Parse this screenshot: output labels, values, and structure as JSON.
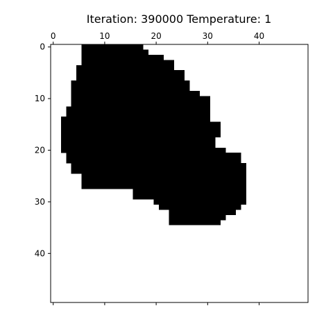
{
  "chart_data": {
    "type": "heatmap",
    "title": "Iteration: 390000 Temperature: 1",
    "grid_size": [
      50,
      50
    ],
    "xlim": [
      -0.5,
      49.5
    ],
    "ylim": [
      49.5,
      -0.5
    ],
    "x_ticks": [
      0,
      10,
      20,
      30,
      40
    ],
    "y_ticks": [
      0,
      10,
      20,
      30,
      40
    ],
    "x_axis_position": "top-and-bottom",
    "colormap": {
      "filled": "#000000",
      "empty": "#ffffff"
    },
    "filled_rows": [
      {
        "row": 0,
        "start": 6,
        "end": 17
      },
      {
        "row": 1,
        "start": 6,
        "end": 18
      },
      {
        "row": 2,
        "start": 6,
        "end": 21
      },
      {
        "row": 3,
        "start": 6,
        "end": 23
      },
      {
        "row": 4,
        "start": 5,
        "end": 23
      },
      {
        "row": 5,
        "start": 5,
        "end": 25
      },
      {
        "row": 6,
        "start": 5,
        "end": 25
      },
      {
        "row": 7,
        "start": 4,
        "end": 26
      },
      {
        "row": 8,
        "start": 4,
        "end": 26
      },
      {
        "row": 9,
        "start": 4,
        "end": 28
      },
      {
        "row": 10,
        "start": 4,
        "end": 30
      },
      {
        "row": 11,
        "start": 4,
        "end": 30
      },
      {
        "row": 12,
        "start": 3,
        "end": 30
      },
      {
        "row": 13,
        "start": 3,
        "end": 30
      },
      {
        "row": 14,
        "start": 2,
        "end": 30
      },
      {
        "row": 15,
        "start": 2,
        "end": 32
      },
      {
        "row": 16,
        "start": 2,
        "end": 32
      },
      {
        "row": 17,
        "start": 2,
        "end": 32
      },
      {
        "row": 18,
        "start": 2,
        "end": 31
      },
      {
        "row": 19,
        "start": 2,
        "end": 31
      },
      {
        "row": 20,
        "start": 2,
        "end": 33
      },
      {
        "row": 21,
        "start": 3,
        "end": 36
      },
      {
        "row": 22,
        "start": 3,
        "end": 36
      },
      {
        "row": 23,
        "start": 4,
        "end": 37
      },
      {
        "row": 24,
        "start": 4,
        "end": 37
      },
      {
        "row": 25,
        "start": 6,
        "end": 37
      },
      {
        "row": 26,
        "start": 6,
        "end": 37
      },
      {
        "row": 27,
        "start": 6,
        "end": 37
      },
      {
        "row": 28,
        "start": 16,
        "end": 37
      },
      {
        "row": 29,
        "start": 16,
        "end": 37
      },
      {
        "row": 30,
        "start": 20,
        "end": 37
      },
      {
        "row": 31,
        "start": 21,
        "end": 36
      },
      {
        "row": 32,
        "start": 23,
        "end": 35
      },
      {
        "row": 33,
        "start": 23,
        "end": 33
      },
      {
        "row": 34,
        "start": 23,
        "end": 32
      }
    ]
  }
}
